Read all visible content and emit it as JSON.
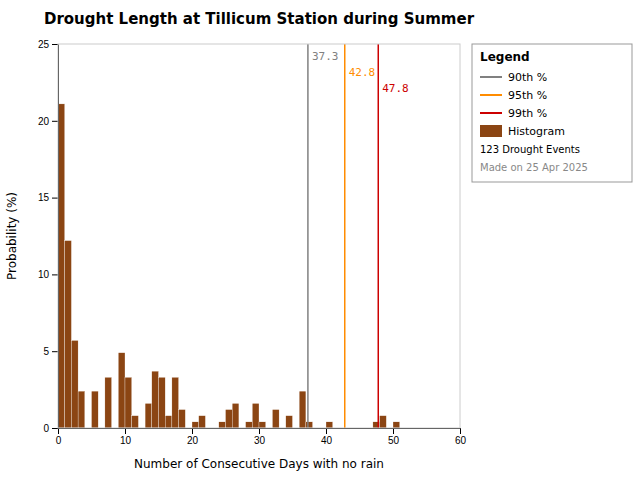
{
  "chart_data": {
    "type": "histogram",
    "title": "Drought Length at Tillicum Station during Summer",
    "x_label": "Number of Consecutive Days with no rain",
    "y_label": "Probability (%)",
    "bins": [
      0,
      1,
      2,
      3,
      4,
      5,
      6,
      7,
      8,
      9,
      10,
      11,
      12,
      13,
      14,
      15,
      16,
      17,
      18,
      19,
      20,
      21,
      22,
      23,
      24,
      25,
      26,
      27,
      28,
      29,
      30,
      31,
      32,
      33,
      34,
      35,
      36,
      37,
      38,
      39,
      40,
      41,
      42,
      43,
      44,
      45,
      46,
      47,
      48,
      49,
      50,
      51,
      52,
      53,
      54,
      55,
      56,
      57,
      58,
      59,
      60
    ],
    "series": [
      {
        "name": "Histogram",
        "color": "#8B4513",
        "values": [
          21.1,
          12.2,
          5.7,
          2.4,
          0.0,
          2.4,
          0.0,
          3.3,
          0.0,
          4.9,
          3.3,
          0.8,
          0.0,
          1.6,
          3.7,
          3.3,
          0.8,
          3.3,
          1.2,
          0.0,
          0.4,
          0.8,
          0.0,
          0.0,
          0.4,
          1.2,
          1.6,
          0.0,
          0.4,
          1.6,
          0.4,
          0.0,
          1.2,
          0.0,
          0.8,
          0.0,
          2.4,
          0.4,
          0.0,
          0.0,
          0.4,
          0.0,
          0.0,
          0.0,
          0.0,
          0.0,
          0.0,
          0.4,
          0.8,
          0.0,
          0.4,
          0.0,
          0.0,
          0.0,
          0.0,
          0.0,
          0.0,
          0.0,
          0.0,
          0.0
        ]
      }
    ],
    "lines": [
      {
        "name": "90th %",
        "value": 37.3,
        "color": "#808080"
      },
      {
        "name": "95th %",
        "value": 42.8,
        "color": "#FF8C00"
      },
      {
        "name": "99th %",
        "value": 47.8,
        "color": "#CC0000"
      }
    ],
    "legend_title": "Legend",
    "legend_notes": [
      "123 Drought Events",
      "Made on 25 Apr 2025"
    ],
    "legend": "upper right",
    "grid": false,
    "xlim": [
      0,
      60
    ],
    "ylim": [
      0,
      25
    ],
    "xticks": [
      0,
      10,
      20,
      30,
      40,
      50,
      60
    ],
    "yticks": [
      0,
      5,
      10,
      15,
      20,
      25
    ]
  }
}
